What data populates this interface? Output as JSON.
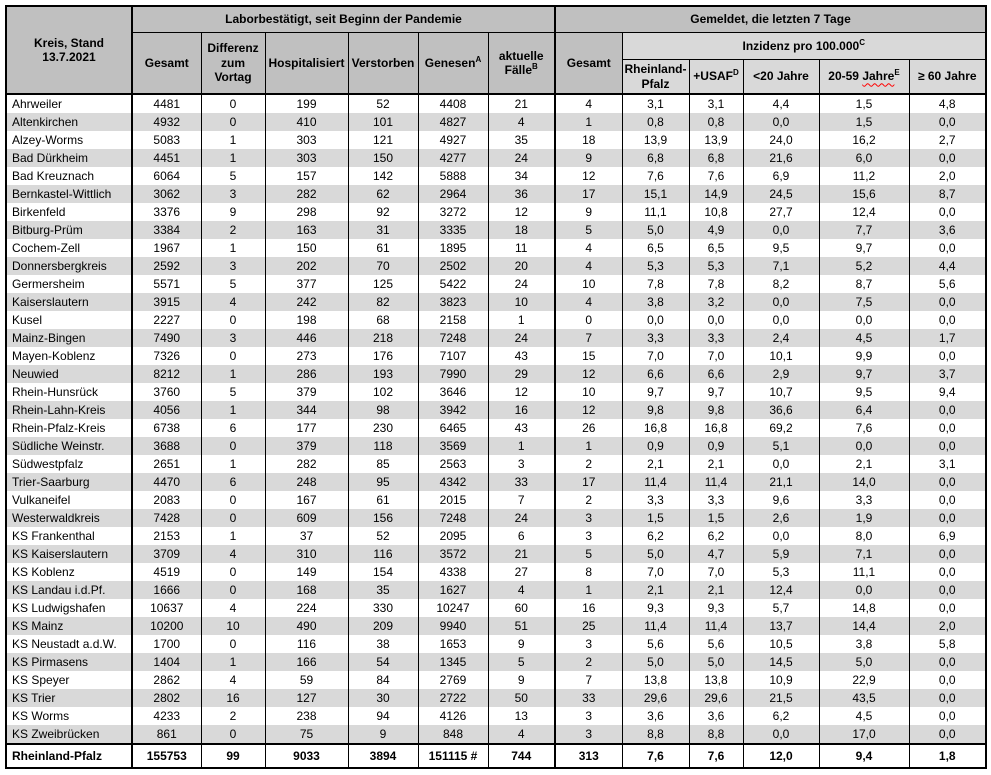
{
  "header": {
    "kreis_line1": "Kreis, Stand",
    "kreis_line2": "13.7.2021",
    "group_labor": "Laborbestätigt, seit Beginn der Pandemie",
    "group_gemeldet": "Gemeldet, die letzten 7 Tage",
    "inzidenz": {
      "label": "Inzidenz pro 100.000",
      "sup": "C"
    },
    "cols": {
      "gesamt": "Gesamt",
      "differenz": "Differenz zum Vortag",
      "hospitalisiert": "Hospitalisiert",
      "verstorben": "Verstorben",
      "genesen": {
        "label": "Genesen",
        "sup": "A"
      },
      "aktuelle": {
        "label": "aktuelle Fälle",
        "sup": "B"
      },
      "gesamt7": "Gesamt",
      "rlp": "Rheinland-Pfalz",
      "usaf": {
        "label": "+USAF",
        "sup": "D"
      },
      "u20": "<20 Jahre",
      "a2059": {
        "prefix": "20-59",
        "word": "Jahre",
        "sup": "E"
      },
      "o60": "≥ 60 Jahre"
    }
  },
  "rows": [
    {
      "kreis": "Ahrweiler",
      "values": [
        "4481",
        "0",
        "199",
        "52",
        "4408",
        "21",
        "4",
        "3,1",
        "3,1",
        "4,4",
        "1,5",
        "4,8"
      ]
    },
    {
      "kreis": "Altenkirchen",
      "values": [
        "4932",
        "0",
        "410",
        "101",
        "4827",
        "4",
        "1",
        "0,8",
        "0,8",
        "0,0",
        "1,5",
        "0,0"
      ]
    },
    {
      "kreis": "Alzey-Worms",
      "values": [
        "5083",
        "1",
        "303",
        "121",
        "4927",
        "35",
        "18",
        "13,9",
        "13,9",
        "24,0",
        "16,2",
        "2,7"
      ]
    },
    {
      "kreis": "Bad Dürkheim",
      "values": [
        "4451",
        "1",
        "303",
        "150",
        "4277",
        "24",
        "9",
        "6,8",
        "6,8",
        "21,6",
        "6,0",
        "0,0"
      ]
    },
    {
      "kreis": "Bad Kreuznach",
      "values": [
        "6064",
        "5",
        "157",
        "142",
        "5888",
        "34",
        "12",
        "7,6",
        "7,6",
        "6,9",
        "11,2",
        "2,0"
      ]
    },
    {
      "kreis": "Bernkastel-Wittlich",
      "values": [
        "3062",
        "3",
        "282",
        "62",
        "2964",
        "36",
        "17",
        "15,1",
        "14,9",
        "24,5",
        "15,6",
        "8,7"
      ]
    },
    {
      "kreis": "Birkenfeld",
      "values": [
        "3376",
        "9",
        "298",
        "92",
        "3272",
        "12",
        "9",
        "11,1",
        "10,8",
        "27,7",
        "12,4",
        "0,0"
      ]
    },
    {
      "kreis": "Bitburg-Prüm",
      "values": [
        "3384",
        "2",
        "163",
        "31",
        "3335",
        "18",
        "5",
        "5,0",
        "4,9",
        "0,0",
        "7,7",
        "3,6"
      ]
    },
    {
      "kreis": "Cochem-Zell",
      "values": [
        "1967",
        "1",
        "150",
        "61",
        "1895",
        "11",
        "4",
        "6,5",
        "6,5",
        "9,5",
        "9,7",
        "0,0"
      ]
    },
    {
      "kreis": "Donnersbergkreis",
      "values": [
        "2592",
        "3",
        "202",
        "70",
        "2502",
        "20",
        "4",
        "5,3",
        "5,3",
        "7,1",
        "5,2",
        "4,4"
      ]
    },
    {
      "kreis": "Germersheim",
      "values": [
        "5571",
        "5",
        "377",
        "125",
        "5422",
        "24",
        "10",
        "7,8",
        "7,8",
        "8,2",
        "8,7",
        "5,6"
      ]
    },
    {
      "kreis": "Kaiserslautern",
      "values": [
        "3915",
        "4",
        "242",
        "82",
        "3823",
        "10",
        "4",
        "3,8",
        "3,2",
        "0,0",
        "7,5",
        "0,0"
      ]
    },
    {
      "kreis": "Kusel",
      "values": [
        "2227",
        "0",
        "198",
        "68",
        "2158",
        "1",
        "0",
        "0,0",
        "0,0",
        "0,0",
        "0,0",
        "0,0"
      ]
    },
    {
      "kreis": "Mainz-Bingen",
      "values": [
        "7490",
        "3",
        "446",
        "218",
        "7248",
        "24",
        "7",
        "3,3",
        "3,3",
        "2,4",
        "4,5",
        "1,7"
      ]
    },
    {
      "kreis": "Mayen-Koblenz",
      "values": [
        "7326",
        "0",
        "273",
        "176",
        "7107",
        "43",
        "15",
        "7,0",
        "7,0",
        "10,1",
        "9,9",
        "0,0"
      ]
    },
    {
      "kreis": "Neuwied",
      "values": [
        "8212",
        "1",
        "286",
        "193",
        "7990",
        "29",
        "12",
        "6,6",
        "6,6",
        "2,9",
        "9,7",
        "3,7"
      ]
    },
    {
      "kreis": "Rhein-Hunsrück",
      "values": [
        "3760",
        "5",
        "379",
        "102",
        "3646",
        "12",
        "10",
        "9,7",
        "9,7",
        "10,7",
        "9,5",
        "9,4"
      ]
    },
    {
      "kreis": "Rhein-Lahn-Kreis",
      "values": [
        "4056",
        "1",
        "344",
        "98",
        "3942",
        "16",
        "12",
        "9,8",
        "9,8",
        "36,6",
        "6,4",
        "0,0"
      ]
    },
    {
      "kreis": "Rhein-Pfalz-Kreis",
      "values": [
        "6738",
        "6",
        "177",
        "230",
        "6465",
        "43",
        "26",
        "16,8",
        "16,8",
        "69,2",
        "7,6",
        "0,0"
      ]
    },
    {
      "kreis": "Südliche Weinstr.",
      "values": [
        "3688",
        "0",
        "379",
        "118",
        "3569",
        "1",
        "1",
        "0,9",
        "0,9",
        "5,1",
        "0,0",
        "0,0"
      ]
    },
    {
      "kreis": "Südwestpfalz",
      "values": [
        "2651",
        "1",
        "282",
        "85",
        "2563",
        "3",
        "2",
        "2,1",
        "2,1",
        "0,0",
        "2,1",
        "3,1"
      ]
    },
    {
      "kreis": "Trier-Saarburg",
      "values": [
        "4470",
        "6",
        "248",
        "95",
        "4342",
        "33",
        "17",
        "11,4",
        "11,4",
        "21,1",
        "14,0",
        "0,0"
      ]
    },
    {
      "kreis": "Vulkaneifel",
      "values": [
        "2083",
        "0",
        "167",
        "61",
        "2015",
        "7",
        "2",
        "3,3",
        "3,3",
        "9,6",
        "3,3",
        "0,0"
      ]
    },
    {
      "kreis": "Westerwaldkreis",
      "values": [
        "7428",
        "0",
        "609",
        "156",
        "7248",
        "24",
        "3",
        "1,5",
        "1,5",
        "2,6",
        "1,9",
        "0,0"
      ]
    },
    {
      "kreis": "KS Frankenthal",
      "values": [
        "2153",
        "1",
        "37",
        "52",
        "2095",
        "6",
        "3",
        "6,2",
        "6,2",
        "0,0",
        "8,0",
        "6,9"
      ]
    },
    {
      "kreis": "KS Kaiserslautern",
      "values": [
        "3709",
        "4",
        "310",
        "116",
        "3572",
        "21",
        "5",
        "5,0",
        "4,7",
        "5,9",
        "7,1",
        "0,0"
      ]
    },
    {
      "kreis": "KS Koblenz",
      "values": [
        "4519",
        "0",
        "149",
        "154",
        "4338",
        "27",
        "8",
        "7,0",
        "7,0",
        "5,3",
        "11,1",
        "0,0"
      ]
    },
    {
      "kreis": "KS Landau i.d.Pf.",
      "values": [
        "1666",
        "0",
        "168",
        "35",
        "1627",
        "4",
        "1",
        "2,1",
        "2,1",
        "12,4",
        "0,0",
        "0,0"
      ]
    },
    {
      "kreis": "KS Ludwigshafen",
      "values": [
        "10637",
        "4",
        "224",
        "330",
        "10247",
        "60",
        "16",
        "9,3",
        "9,3",
        "5,7",
        "14,8",
        "0,0"
      ]
    },
    {
      "kreis": "KS Mainz",
      "values": [
        "10200",
        "10",
        "490",
        "209",
        "9940",
        "51",
        "25",
        "11,4",
        "11,4",
        "13,7",
        "14,4",
        "2,0"
      ]
    },
    {
      "kreis": "KS Neustadt a.d.W.",
      "values": [
        "1700",
        "0",
        "116",
        "38",
        "1653",
        "9",
        "3",
        "5,6",
        "5,6",
        "10,5",
        "3,8",
        "5,8"
      ]
    },
    {
      "kreis": "KS Pirmasens",
      "values": [
        "1404",
        "1",
        "166",
        "54",
        "1345",
        "5",
        "2",
        "5,0",
        "5,0",
        "14,5",
        "5,0",
        "0,0"
      ]
    },
    {
      "kreis": "KS Speyer",
      "values": [
        "2862",
        "4",
        "59",
        "84",
        "2769",
        "9",
        "7",
        "13,8",
        "13,8",
        "10,9",
        "22,9",
        "0,0"
      ]
    },
    {
      "kreis": "KS Trier",
      "values": [
        "2802",
        "16",
        "127",
        "30",
        "2722",
        "50",
        "33",
        "29,6",
        "29,6",
        "21,5",
        "43,5",
        "0,0"
      ]
    },
    {
      "kreis": "KS Worms",
      "values": [
        "4233",
        "2",
        "238",
        "94",
        "4126",
        "13",
        "3",
        "3,6",
        "3,6",
        "6,2",
        "4,5",
        "0,0"
      ]
    },
    {
      "kreis": "KS Zweibrücken",
      "values": [
        "861",
        "0",
        "75",
        "9",
        "848",
        "4",
        "3",
        "8,8",
        "8,8",
        "0,0",
        "17,0",
        "0,0"
      ]
    }
  ],
  "total": {
    "kreis": "Rheinland-Pfalz",
    "values": [
      "155753",
      "99",
      "9033",
      "3894",
      "151115 #",
      "744",
      "313",
      "7,6",
      "7,6",
      "12,0",
      "9,4",
      "1,8"
    ]
  },
  "colors": {
    "header_bg": "#c0c0c0",
    "header_light_bg": "#d9d9d9",
    "row_stripe_bg": "#d9d9d9",
    "row_bg": "#ffffff",
    "border": "#000000",
    "spellcheck_squiggle": "#ff0000",
    "text": "#000000"
  }
}
